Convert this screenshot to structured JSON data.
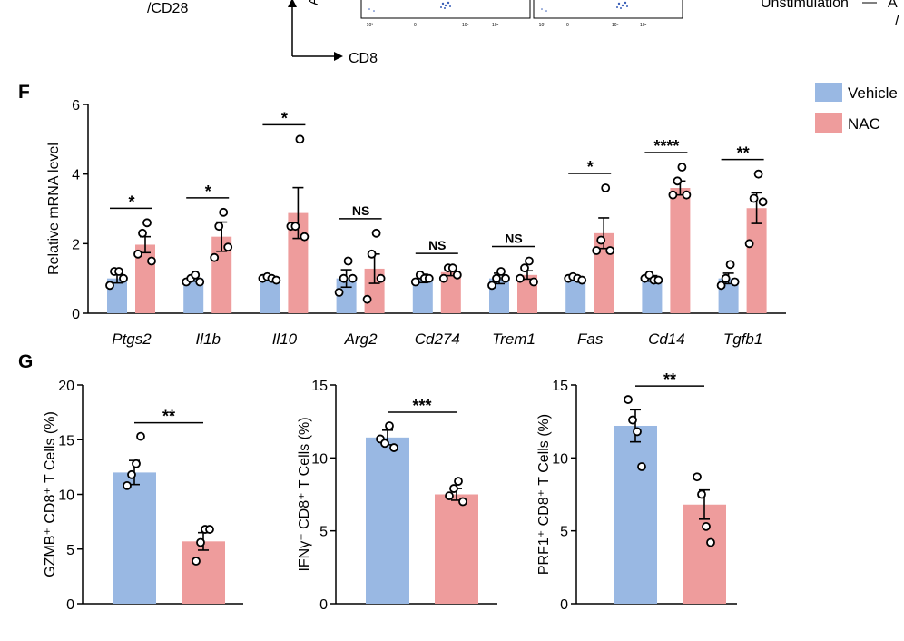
{
  "top_fragment": {
    "left_label": "/CD28",
    "axis_label": "CD8",
    "y_axis_fragment": "A",
    "flow_ticks": [
      "-10³",
      "0",
      "10⁴",
      "10⁵",
      "-10³",
      "0",
      "10⁴",
      "10⁵"
    ],
    "right_text_1": "Unstimulation",
    "right_text_2": "A",
    "right_text_3": "/"
  },
  "colors": {
    "vehicle": "#99b8e3",
    "nac": "#ee9c9c",
    "dot_stroke": "#000000"
  },
  "chart_data": [
    {
      "panel": "F",
      "type": "bar",
      "ylabel": "Relative mRNA level",
      "ylim": [
        0,
        6
      ],
      "yticks": [
        0,
        2,
        4,
        6
      ],
      "legend_position": "top-right",
      "series_names": [
        "Vehicle",
        "NAC"
      ],
      "categories": [
        "Ptgs2",
        "Il1b",
        "Il10",
        "Arg2",
        "Cd274",
        "Trem1",
        "Fas",
        "Cd14",
        "Tgfb1"
      ],
      "significance": [
        "*",
        "*",
        "*",
        "NS",
        "NS",
        "NS",
        "*",
        "****",
        "**"
      ],
      "series": [
        {
          "name": "Vehicle",
          "values": [
            1.0,
            1.0,
            1.0,
            1.0,
            1.0,
            1.0,
            1.0,
            1.0,
            1.0
          ],
          "sem": [
            0.13,
            0.08,
            0.06,
            0.25,
            0.12,
            0.15,
            0.04,
            0.08,
            0.15
          ],
          "points": [
            [
              0.8,
              1.2,
              1.2,
              1.0
            ],
            [
              0.9,
              1.0,
              1.1,
              0.9
            ],
            [
              1.0,
              1.05,
              1.0,
              0.95
            ],
            [
              0.6,
              1.0,
              1.5,
              1.0
            ],
            [
              0.9,
              1.1,
              1.0,
              1.0
            ],
            [
              0.8,
              1.0,
              1.2,
              1.0
            ],
            [
              1.0,
              1.05,
              1.0,
              0.95
            ],
            [
              1.0,
              1.1,
              0.95,
              0.95
            ],
            [
              0.8,
              1.0,
              1.4,
              0.9
            ]
          ]
        },
        {
          "name": "NAC",
          "values": [
            1.97,
            2.2,
            2.88,
            1.28,
            1.18,
            1.1,
            2.3,
            3.6,
            3.02
          ],
          "sem": [
            0.23,
            0.42,
            0.73,
            0.42,
            0.1,
            0.12,
            0.44,
            0.2,
            0.44
          ],
          "points": [
            [
              1.7,
              2.3,
              2.6,
              1.5
            ],
            [
              1.6,
              2.5,
              2.9,
              1.9
            ],
            [
              2.5,
              2.5,
              5.0,
              2.2
            ],
            [
              0.4,
              1.7,
              2.3,
              1.0
            ],
            [
              1.0,
              1.3,
              1.3,
              1.1
            ],
            [
              1.0,
              1.3,
              1.5,
              0.9
            ],
            [
              1.8,
              2.1,
              3.6,
              1.8
            ],
            [
              3.4,
              3.8,
              4.2,
              3.4
            ],
            [
              2.0,
              3.3,
              4.0,
              3.2
            ]
          ]
        }
      ]
    },
    {
      "panel": "G",
      "type": "bar",
      "ylabel": "GZMB⁺ CD8⁺ T Cells (%)",
      "ylim": [
        0,
        20
      ],
      "yticks": [
        0,
        5,
        10,
        15,
        20
      ],
      "significance": "**",
      "categories": [
        "Vehicle",
        "NAC"
      ],
      "values": [
        12.0,
        5.7
      ],
      "sem": [
        1.1,
        0.8
      ],
      "points": [
        [
          10.8,
          11.8,
          12.8,
          15.3
        ],
        [
          3.9,
          5.6,
          6.8,
          6.8
        ]
      ]
    },
    {
      "panel": "G",
      "type": "bar",
      "ylabel": "IFNγ⁺ CD8⁺ T Cells (%)",
      "ylim": [
        0,
        15
      ],
      "yticks": [
        0,
        5,
        10,
        15
      ],
      "significance": "***",
      "categories": [
        "Vehicle",
        "NAC"
      ],
      "values": [
        11.4,
        7.5
      ],
      "sem": [
        0.5,
        0.4
      ],
      "points": [
        [
          11.3,
          11.0,
          12.2,
          10.7
        ],
        [
          7.4,
          7.9,
          8.4,
          7.0
        ]
      ]
    },
    {
      "panel": "G",
      "type": "bar",
      "ylabel": "PRF1⁺ CD8⁺ T Cells (%)",
      "ylim": [
        0,
        15
      ],
      "yticks": [
        0,
        5,
        10,
        15
      ],
      "significance": "**",
      "categories": [
        "Vehicle",
        "NAC"
      ],
      "values": [
        12.2,
        6.8
      ],
      "sem": [
        1.1,
        1.0
      ],
      "points": [
        [
          14.0,
          12.6,
          11.8,
          9.4
        ],
        [
          8.7,
          7.5,
          5.3,
          4.2
        ]
      ]
    }
  ],
  "panel_labels": [
    "F",
    "G"
  ]
}
